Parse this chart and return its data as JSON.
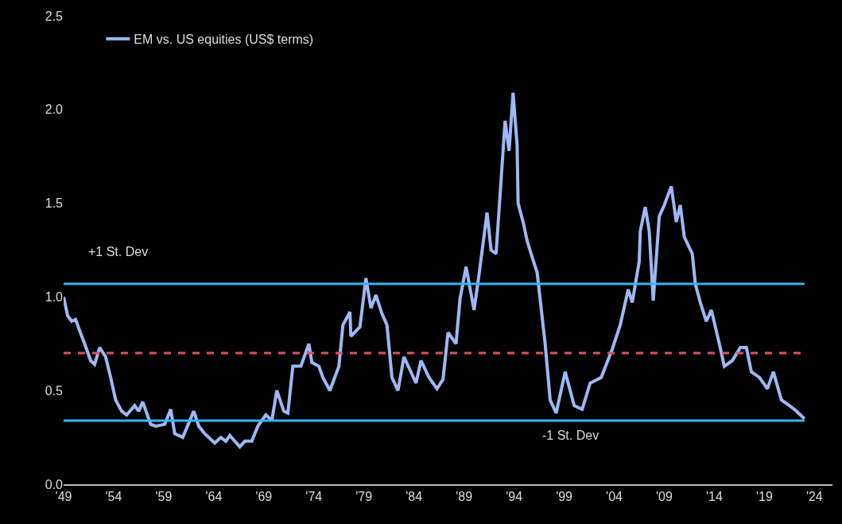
{
  "chart_data": {
    "type": "line",
    "x": [
      1949.0,
      1949.4,
      1949.8,
      1950.2,
      1950.6,
      1951.1,
      1951.7,
      1952.1,
      1952.6,
      1953.2,
      1953.7,
      1954.2,
      1954.8,
      1955.3,
      1956.1,
      1956.5,
      1956.9,
      1957.7,
      1958.2,
      1959.1,
      1959.7,
      1960.1,
      1960.9,
      1962.0,
      1962.5,
      1963.1,
      1964.1,
      1964.7,
      1965.2,
      1965.6,
      1966.6,
      1967.1,
      1967.8,
      1968.4,
      1969.2,
      1969.8,
      1970.3,
      1971.0,
      1971.4,
      1971.9,
      1972.7,
      1973.5,
      1973.8,
      1974.5,
      1974.9,
      1975.6,
      1976.5,
      1976.9,
      1977.6,
      1977.7,
      1978.6,
      1979.2,
      1979.7,
      1980.2,
      1980.8,
      1981.3,
      1981.8,
      1982.4,
      1983.0,
      1984.2,
      1984.7,
      1985.5,
      1986.3,
      1986.9,
      1987.4,
      1988.2,
      1988.6,
      1989.2,
      1990.0,
      1990.5,
      1991.3,
      1991.7,
      1992.2,
      1993.1,
      1993.5,
      1993.9,
      1994.3,
      1994.4,
      1994.9,
      1995.3,
      1995.7,
      1996.3,
      1997.1,
      1997.6,
      1998.2,
      1999.1,
      2000.0,
      2000.8,
      2001.6,
      2002.7,
      2003.8,
      2004.6,
      2005.4,
      2005.8,
      2006.5,
      2006.6,
      2007.1,
      2007.5,
      2007.9,
      2008.5,
      2009.0,
      2009.7,
      2010.2,
      2010.6,
      2011.0,
      2011.8,
      2012.1,
      2012.6,
      2013.2,
      2013.7,
      2014.5,
      2015.0,
      2015.8,
      2016.6,
      2017.2,
      2017.7,
      2018.5,
      2019.3,
      2019.9,
      2020.7,
      2021.5,
      2022.0,
      2023.0
    ],
    "series": [
      {
        "name": "EM vs. US equities (US$ terms)",
        "color": "#9db8f5",
        "values": [
          1.0,
          0.9,
          0.87,
          0.88,
          0.82,
          0.75,
          0.66,
          0.64,
          0.73,
          0.68,
          0.57,
          0.45,
          0.39,
          0.37,
          0.42,
          0.39,
          0.44,
          0.32,
          0.31,
          0.32,
          0.4,
          0.27,
          0.25,
          0.39,
          0.31,
          0.27,
          0.22,
          0.25,
          0.23,
          0.26,
          0.2,
          0.23,
          0.23,
          0.31,
          0.37,
          0.34,
          0.5,
          0.39,
          0.38,
          0.63,
          0.63,
          0.75,
          0.65,
          0.63,
          0.57,
          0.5,
          0.63,
          0.85,
          0.92,
          0.79,
          0.84,
          1.1,
          0.94,
          1.01,
          0.91,
          0.85,
          0.57,
          0.5,
          0.68,
          0.54,
          0.66,
          0.57,
          0.51,
          0.56,
          0.81,
          0.75,
          0.99,
          1.16,
          0.93,
          1.12,
          1.45,
          1.25,
          1.23,
          1.94,
          1.78,
          2.09,
          1.81,
          1.5,
          1.4,
          1.3,
          1.23,
          1.13,
          0.75,
          0.45,
          0.38,
          0.6,
          0.42,
          0.4,
          0.54,
          0.57,
          0.72,
          0.85,
          1.04,
          0.97,
          1.19,
          1.35,
          1.48,
          1.35,
          0.98,
          1.43,
          1.49,
          1.59,
          1.4,
          1.49,
          1.32,
          1.23,
          1.07,
          0.97,
          0.87,
          0.93,
          0.75,
          0.63,
          0.66,
          0.73,
          0.73,
          0.6,
          0.57,
          0.51,
          0.6,
          0.45,
          0.42,
          0.4,
          0.35
        ]
      }
    ],
    "xlim": [
      1949,
      2025.8
    ],
    "xticks": [
      {
        "value": 1949,
        "label": "'49"
      },
      {
        "value": 1954,
        "label": "'54"
      },
      {
        "value": 1959,
        "label": "'59"
      },
      {
        "value": 1964,
        "label": "'64"
      },
      {
        "value": 1969,
        "label": "'69"
      },
      {
        "value": 1974,
        "label": "'74"
      },
      {
        "value": 1979,
        "label": "'79"
      },
      {
        "value": 1984,
        "label": "'84"
      },
      {
        "value": 1989,
        "label": "'89"
      },
      {
        "value": 1994,
        "label": "'94"
      },
      {
        "value": 1999,
        "label": "'99"
      },
      {
        "value": 2004,
        "label": "'04"
      },
      {
        "value": 2009,
        "label": "'09"
      },
      {
        "value": 2014,
        "label": "'14"
      },
      {
        "value": 2019,
        "label": "'19"
      },
      {
        "value": 2024,
        "label": "'24"
      }
    ],
    "ylim": [
      0,
      2.5
    ],
    "yticks": [
      {
        "value": 0,
        "label": "0.0"
      },
      {
        "value": 0.5,
        "label": "0.5"
      },
      {
        "value": 1,
        "label": "1.0"
      },
      {
        "value": 1.5,
        "label": "1.5"
      },
      {
        "value": 2,
        "label": "2.0"
      },
      {
        "value": 2.5,
        "label": "2.5"
      }
    ],
    "ref_lines": [
      {
        "axis": "y",
        "value": 1.07,
        "label": "+1 St. Dev",
        "color": "#33b7f2",
        "line_style": "solid"
      },
      {
        "axis": "y",
        "value": 0.7,
        "label": null,
        "color": "#e0505f",
        "line_style": "dashed"
      },
      {
        "axis": "y",
        "value": 0.34,
        "label": "-1 St. Dev",
        "color": "#33b7f2",
        "line_style": "solid"
      }
    ],
    "grid": false,
    "legend": "top left",
    "marker": "none",
    "line_style": "solid"
  }
}
